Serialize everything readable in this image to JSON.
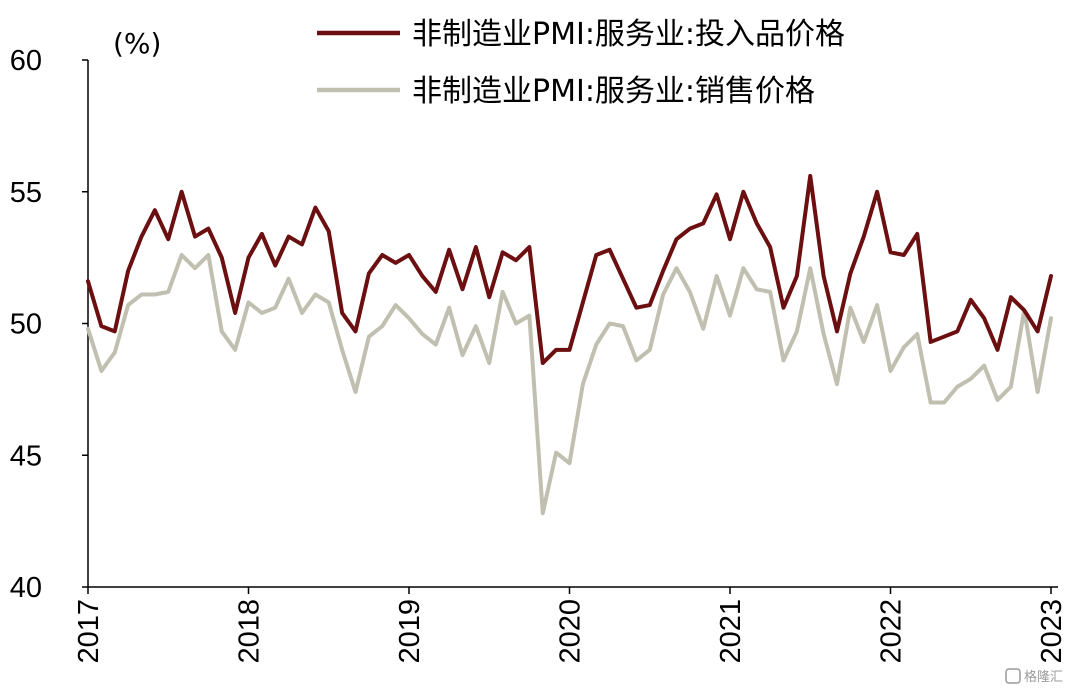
{
  "chart_data": {
    "type": "line",
    "ylabel": "(%)",
    "ylim": [
      40,
      60
    ],
    "yticks": [
      40,
      45,
      50,
      55,
      60
    ],
    "x_start": "2017-01",
    "x_end": "2023-01",
    "xticks": [
      "2017",
      "2018",
      "2019",
      "2020",
      "2021",
      "2022",
      "2023"
    ],
    "legend_position": "top",
    "grid": false,
    "series": [
      {
        "name": "非制造业PMI:服务业:投入品价格",
        "color": "#6b0f10",
        "values": [
          51.6,
          49.9,
          49.7,
          52.0,
          53.3,
          54.3,
          53.2,
          55.0,
          53.3,
          53.6,
          52.5,
          50.4,
          52.5,
          53.4,
          52.2,
          53.3,
          53.0,
          54.4,
          53.5,
          50.4,
          49.7,
          51.9,
          52.6,
          52.3,
          52.6,
          51.8,
          51.2,
          52.8,
          51.3,
          52.9,
          51.0,
          52.7,
          52.4,
          52.9,
          48.5,
          49.0,
          49.0,
          50.8,
          52.6,
          52.8,
          51.7,
          50.6,
          50.7,
          52.0,
          53.2,
          53.6,
          53.8,
          54.9,
          53.2,
          55.0,
          53.8,
          52.9,
          50.6,
          51.8,
          55.6,
          51.8,
          49.7,
          51.9,
          53.3,
          55.0,
          52.7,
          52.6,
          53.4,
          49.3,
          49.5,
          49.7,
          50.9,
          50.2,
          49.0,
          51.0,
          50.5,
          49.7,
          51.8
        ]
      },
      {
        "name": "非制造业PMI:服务业:销售价格",
        "color": "#c1bfb0",
        "values": [
          49.8,
          48.2,
          48.9,
          50.7,
          51.1,
          51.1,
          51.2,
          52.6,
          52.1,
          52.6,
          49.7,
          49.0,
          50.8,
          50.4,
          50.6,
          51.7,
          50.4,
          51.1,
          50.8,
          49.0,
          47.4,
          49.5,
          49.9,
          50.7,
          50.2,
          49.6,
          49.2,
          50.6,
          48.8,
          49.9,
          48.5,
          51.2,
          50.0,
          50.3,
          42.8,
          45.1,
          44.7,
          47.7,
          49.2,
          50.0,
          49.9,
          48.6,
          49.0,
          51.1,
          52.1,
          51.2,
          49.8,
          51.8,
          50.3,
          52.1,
          51.3,
          51.2,
          48.6,
          49.7,
          52.1,
          49.6,
          47.7,
          50.6,
          49.3,
          50.7,
          48.2,
          49.1,
          49.6,
          47.0,
          47.0,
          47.6,
          47.9,
          48.4,
          47.1,
          47.6,
          50.5,
          47.4,
          50.2
        ]
      }
    ]
  },
  "watermark": "格隆汇"
}
